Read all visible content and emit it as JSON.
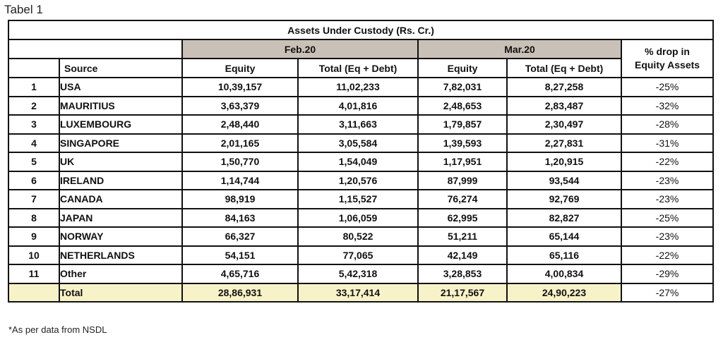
{
  "caption": "Tabel 1",
  "footnote": "*As per data from NSDL",
  "table": {
    "title": "Assets Under Custody (Rs. Cr.)",
    "periods": [
      "Feb.20",
      "Mar.20"
    ],
    "drop_header_line1": "% drop in",
    "drop_header_line2": "Equity Assets",
    "headers": {
      "source": "Source",
      "equity": "Equity",
      "total": "Total (Eq + Debt)"
    },
    "rows": [
      {
        "rank": "1",
        "source": "USA",
        "feb_equity": "10,39,157",
        "feb_total": "11,02,233",
        "mar_equity": "7,82,031",
        "mar_total": "8,27,258",
        "drop": "-25%"
      },
      {
        "rank": "2",
        "source": "MAURITIUS",
        "feb_equity": "3,63,379",
        "feb_total": "4,01,816",
        "mar_equity": "2,48,653",
        "mar_total": "2,83,487",
        "drop": "-32%"
      },
      {
        "rank": "3",
        "source": "LUXEMBOURG",
        "feb_equity": "2,48,440",
        "feb_total": "3,11,663",
        "mar_equity": "1,79,857",
        "mar_total": "2,30,497",
        "drop": "-28%"
      },
      {
        "rank": "4",
        "source": "SINGAPORE",
        "feb_equity": "2,01,165",
        "feb_total": "3,05,584",
        "mar_equity": "1,39,593",
        "mar_total": "2,27,831",
        "drop": "-31%"
      },
      {
        "rank": "5",
        "source": "UK",
        "feb_equity": "1,50,770",
        "feb_total": "1,54,049",
        "mar_equity": "1,17,951",
        "mar_total": "1,20,915",
        "drop": "-22%"
      },
      {
        "rank": "6",
        "source": "IRELAND",
        "feb_equity": "1,14,744",
        "feb_total": "1,20,576",
        "mar_equity": "87,999",
        "mar_total": "93,544",
        "drop": "-23%"
      },
      {
        "rank": "7",
        "source": "CANADA",
        "feb_equity": "98,919",
        "feb_total": "1,15,527",
        "mar_equity": "76,274",
        "mar_total": "92,769",
        "drop": "-23%"
      },
      {
        "rank": "8",
        "source": "JAPAN",
        "feb_equity": "84,163",
        "feb_total": "1,06,059",
        "mar_equity": "62,995",
        "mar_total": "82,827",
        "drop": "-25%"
      },
      {
        "rank": "9",
        "source": "NORWAY",
        "feb_equity": "66,327",
        "feb_total": "80,522",
        "mar_equity": "51,211",
        "mar_total": "65,144",
        "drop": "-23%"
      },
      {
        "rank": "10",
        "source": "NETHERLANDS",
        "feb_equity": "54,151",
        "feb_total": "77,065",
        "mar_equity": "42,149",
        "mar_total": "65,116",
        "drop": "-22%"
      },
      {
        "rank": "11",
        "source": "Other",
        "feb_equity": "4,65,716",
        "feb_total": "5,42,318",
        "mar_equity": "3,28,853",
        "mar_total": "4,00,834",
        "drop": "-29%"
      }
    ],
    "total": {
      "source": "Total",
      "feb_equity": "28,86,931",
      "feb_total": "33,17,414",
      "mar_equity": "21,17,567",
      "mar_total": "24,90,223",
      "drop": "-27%"
    },
    "colors": {
      "period_header_bg": "#c9c0b7",
      "total_row_bg": "#f7f2c8",
      "border": "#111111"
    }
  }
}
